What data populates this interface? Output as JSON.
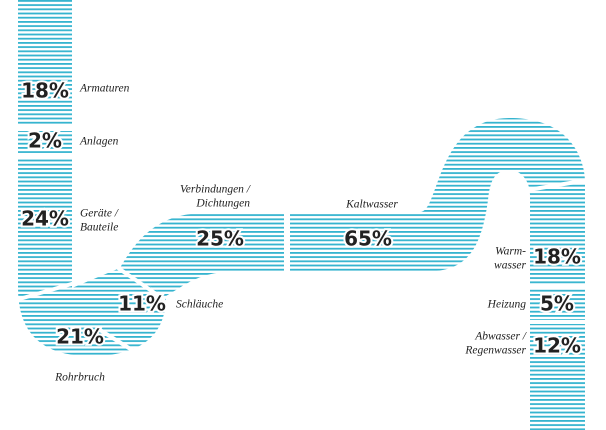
{
  "segments": [
    {
      "value": "18%",
      "label": [
        "Armaturen"
      ]
    },
    {
      "value": "2%",
      "label": [
        "Anlagen"
      ]
    },
    {
      "value": "24%",
      "label": [
        "Geräte /",
        "Bauteile"
      ]
    },
    {
      "value": "21%",
      "label": [
        "Rohrbruch"
      ]
    },
    {
      "value": "11%",
      "label": [
        "Schläuche"
      ]
    },
    {
      "value": "25%",
      "label": [
        "Verbindungen /",
        "Dichtungen"
      ]
    },
    {
      "value": "65%",
      "label": [
        "Kaltwasser"
      ]
    },
    {
      "value": "18%",
      "label": [
        "Warm-",
        "wasser"
      ]
    },
    {
      "value": "5%",
      "label": [
        "Heizung"
      ]
    },
    {
      "value": "12%",
      "label": [
        "Abwasser /",
        "Regenwasser"
      ]
    }
  ]
}
